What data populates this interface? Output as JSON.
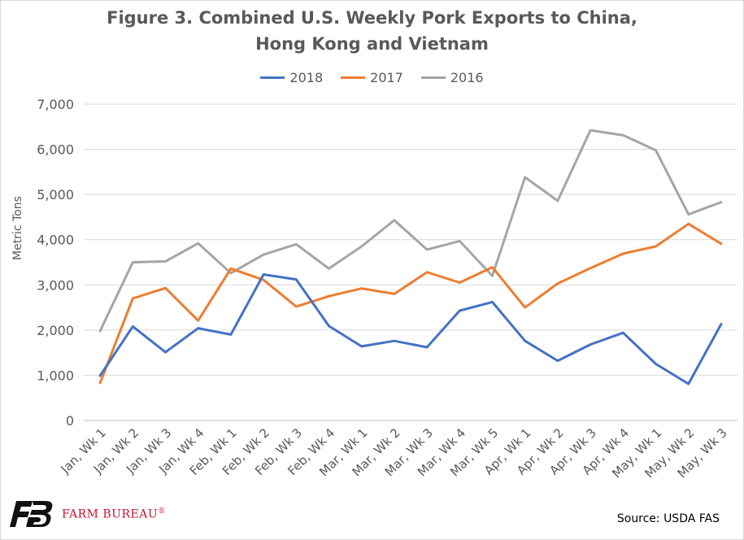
{
  "chart_data": {
    "type": "line",
    "title": "Figure 3. Combined U.S. Weekly Pork Exports to China,",
    "title_line2": "Hong Kong and Vietnam",
    "xlabel": "",
    "ylabel": "Metric Tons",
    "ylim": [
      0,
      7000
    ],
    "yticks": [
      "0",
      "1,000",
      "2,000",
      "3,000",
      "4,000",
      "5,000",
      "6,000",
      "7,000"
    ],
    "ytick_values": [
      0,
      1000,
      2000,
      3000,
      4000,
      5000,
      6000,
      7000
    ],
    "grid": true,
    "legend_position": "top",
    "categories": [
      "Jan, Wk 1",
      "Jan, Wk 2",
      "Jan, Wk 3",
      "Jan, Wk 4",
      "Feb, Wk 1",
      "Feb, Wk 2",
      "Feb, Wk 3",
      "Feb, Wk 4",
      "Mar, Wk 1",
      "Mar, Wk 2",
      "Mar, Wk 3",
      "Mar, Wk 4",
      "Mar, Wk 5",
      "Apr, Wk 1",
      "Apr, Wk 2",
      "Apr, Wk 3",
      "Apr, Wk 4",
      "May, Wk 1",
      "May, Wk 2",
      "May, Wk 3"
    ],
    "series": [
      {
        "name": "2018",
        "color": "#4472c4",
        "values": [
          990,
          2080,
          1510,
          2040,
          1900,
          3230,
          3120,
          2090,
          1640,
          1760,
          1620,
          2430,
          2620,
          1760,
          1320,
          1680,
          1940,
          1250,
          810,
          2130
        ]
      },
      {
        "name": "2017",
        "color": "#ed7d31",
        "values": [
          830,
          2700,
          2930,
          2210,
          3360,
          3110,
          2520,
          2750,
          2920,
          2800,
          3280,
          3050,
          3390,
          2500,
          3030,
          3370,
          3690,
          3850,
          4350,
          3910
        ]
      },
      {
        "name": "2016",
        "color": "#a5a5a5",
        "values": [
          1980,
          3500,
          3520,
          3920,
          3260,
          3670,
          3900,
          3360,
          3850,
          4430,
          3780,
          3970,
          3200,
          5380,
          4860,
          6420,
          6310,
          5980,
          4560,
          4830
        ]
      }
    ]
  },
  "logo": {
    "name": "FARM BUREAU",
    "mark": "®",
    "icon": "farm-bureau-fb-logo-icon"
  },
  "source": "Source: USDA FAS"
}
